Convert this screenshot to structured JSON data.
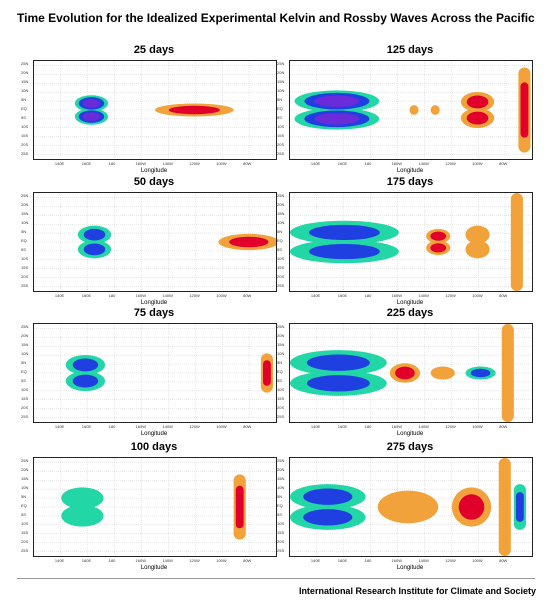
{
  "title": "Time Evolution for the Idealized Experimental Kelvin and Rossby Waves Across the Pacific",
  "footer": "International Research Institute for Climate and Society",
  "colors": {
    "blue": "#1f3fe0",
    "purple": "#6a2bd8",
    "teal": "#22d6a6",
    "orange": "#f2a23a",
    "lightorange": "#f7c07a",
    "red": "#e0002a",
    "grid": "#cfcfcf"
  },
  "chart_data": [
    {
      "type": "heatmap",
      "title": "25 days",
      "xlabel": "Longitude",
      "x_ticks": [
        "140E",
        "160E",
        "180",
        "160W",
        "140W",
        "120W",
        "100W",
        "80W"
      ],
      "y_ticks": [
        "25N",
        "20N",
        "15N",
        "10N",
        "5N",
        "EQ",
        "5S",
        "10S",
        "15S",
        "20S",
        "25S"
      ],
      "xlim": [
        120,
        280
      ],
      "ylim": [
        -30,
        30
      ],
      "features": [
        {
          "kind": "rossby",
          "lon": 158,
          "width": 22,
          "lat_half": 9,
          "layers": [
            "teal",
            "blue",
            "purple"
          ]
        },
        {
          "kind": "kelvin",
          "lon": 226,
          "width": 52,
          "lat_half": 4,
          "layers": [
            "orange",
            "red"
          ]
        }
      ]
    },
    {
      "type": "heatmap",
      "title": "125 days",
      "xlabel": "Longitude",
      "x_ticks": [
        "140E",
        "160E",
        "180",
        "160W",
        "140W",
        "120W",
        "100W",
        "80W"
      ],
      "y_ticks": [
        "25N",
        "20N",
        "15N",
        "10N",
        "5N",
        "EQ",
        "5S",
        "10S",
        "15S",
        "20S",
        "25S"
      ],
      "xlim": [
        120,
        280
      ],
      "ylim": [
        -30,
        30
      ],
      "features": [
        {
          "kind": "rossby",
          "lon": 151,
          "width": 56,
          "lat_half": 12,
          "layers": [
            "teal",
            "blue",
            "purple"
          ]
        },
        {
          "kind": "kelvin",
          "lon": 202,
          "width": 6,
          "lat_half": 3,
          "layers": [
            "orange"
          ]
        },
        {
          "kind": "kelvin",
          "lon": 216,
          "width": 6,
          "lat_half": 3,
          "layers": [
            "orange"
          ]
        },
        {
          "kind": "rossby",
          "lon": 244,
          "width": 22,
          "lat_half": 11,
          "layers": [
            "orange",
            "red"
          ]
        },
        {
          "kind": "boundary",
          "lon": 275,
          "lat_half": 26,
          "layers": [
            "orange",
            "red"
          ]
        }
      ]
    },
    {
      "type": "heatmap",
      "title": "50 days",
      "xlabel": "Longitude",
      "x_ticks": [
        "140E",
        "160E",
        "180",
        "160W",
        "140W",
        "120W",
        "100W",
        "80W"
      ],
      "y_ticks": [
        "25N",
        "20N",
        "15N",
        "10N",
        "5N",
        "EQ",
        "5S",
        "10S",
        "15S",
        "20S",
        "25S"
      ],
      "xlim": [
        120,
        280
      ],
      "ylim": [
        -30,
        30
      ],
      "features": [
        {
          "kind": "rossby",
          "lon": 160,
          "width": 22,
          "lat_half": 10,
          "layers": [
            "teal",
            "blue"
          ]
        },
        {
          "kind": "kelvin",
          "lon": 262,
          "width": 40,
          "lat_half": 5,
          "layers": [
            "orange",
            "red"
          ]
        }
      ]
    },
    {
      "type": "heatmap",
      "title": "175 days",
      "xlabel": "Longitude",
      "x_ticks": [
        "140E",
        "160E",
        "180",
        "160W",
        "140W",
        "120W",
        "100W",
        "80W"
      ],
      "y_ticks": [
        "25N",
        "20N",
        "15N",
        "10N",
        "5N",
        "EQ",
        "5S",
        "10S",
        "15S",
        "20S",
        "25S"
      ],
      "xlim": [
        120,
        280
      ],
      "ylim": [
        -30,
        30
      ],
      "features": [
        {
          "kind": "rossby",
          "lon": 156,
          "width": 72,
          "lat_half": 13,
          "layers": [
            "teal",
            "blue"
          ]
        },
        {
          "kind": "rossby",
          "lon": 218,
          "width": 16,
          "lat_half": 8,
          "layers": [
            "orange",
            "red"
          ]
        },
        {
          "kind": "rossby",
          "lon": 244,
          "width": 16,
          "lat_half": 10,
          "layers": [
            "orange"
          ]
        },
        {
          "kind": "boundary",
          "lon": 270,
          "lat_half": 30,
          "layers": [
            "orange"
          ]
        }
      ]
    },
    {
      "type": "heatmap",
      "title": "75 days",
      "xlabel": "Longitude",
      "x_ticks": [
        "140E",
        "160E",
        "180",
        "160W",
        "140W",
        "120W",
        "100W",
        "80W"
      ],
      "y_ticks": [
        "25N",
        "20N",
        "15N",
        "10N",
        "5N",
        "EQ",
        "5S",
        "10S",
        "15S",
        "20S",
        "25S"
      ],
      "xlim": [
        120,
        280
      ],
      "ylim": [
        -30,
        30
      ],
      "features": [
        {
          "kind": "rossby",
          "lon": 154,
          "width": 26,
          "lat_half": 11,
          "layers": [
            "teal",
            "blue"
          ]
        },
        {
          "kind": "boundary",
          "lon": 274,
          "lat_half": 12,
          "layers": [
            "orange",
            "red"
          ]
        }
      ]
    },
    {
      "type": "heatmap",
      "title": "225 days",
      "xlabel": "Longitude",
      "x_ticks": [
        "140E",
        "160E",
        "180",
        "160W",
        "140W",
        "120W",
        "100W",
        "80W"
      ],
      "y_ticks": [
        "25N",
        "20N",
        "15N",
        "10N",
        "5N",
        "EQ",
        "5S",
        "10S",
        "15S",
        "20S",
        "25S"
      ],
      "xlim": [
        120,
        280
      ],
      "ylim": [
        -30,
        30
      ],
      "features": [
        {
          "kind": "rossby",
          "lon": 152,
          "width": 64,
          "lat_half": 14,
          "layers": [
            "teal",
            "blue"
          ]
        },
        {
          "kind": "kelvin",
          "lon": 196,
          "width": 20,
          "lat_half": 6,
          "layers": [
            "orange",
            "red"
          ]
        },
        {
          "kind": "kelvin",
          "lon": 221,
          "width": 16,
          "lat_half": 4,
          "layers": [
            "orange"
          ]
        },
        {
          "kind": "kelvin",
          "lon": 246,
          "width": 20,
          "lat_half": 4,
          "layers": [
            "teal",
            "blue"
          ]
        },
        {
          "kind": "boundary",
          "lon": 264,
          "lat_half": 30,
          "layers": [
            "orange"
          ]
        }
      ]
    },
    {
      "type": "heatmap",
      "title": "100 days",
      "xlabel": "Longitude",
      "x_ticks": [
        "140E",
        "160E",
        "180",
        "160W",
        "140W",
        "120W",
        "100W",
        "80W"
      ],
      "y_ticks": [
        "25N",
        "20N",
        "15N",
        "10N",
        "5N",
        "EQ",
        "5S",
        "10S",
        "15S",
        "20S",
        "25S"
      ],
      "xlim": [
        120,
        280
      ],
      "ylim": [
        -30,
        30
      ],
      "features": [
        {
          "kind": "rossby",
          "lon": 152,
          "width": 28,
          "lat_half": 12,
          "layers": [
            "teal"
          ]
        },
        {
          "kind": "boundary",
          "lon": 256,
          "lat_half": 20,
          "layers": [
            "orange",
            "red"
          ]
        }
      ]
    },
    {
      "type": "heatmap",
      "title": "275 days",
      "xlabel": "Longitude",
      "x_ticks": [
        "140E",
        "160E",
        "180",
        "160W",
        "140W",
        "120W",
        "100W",
        "80W"
      ],
      "y_ticks": [
        "25N",
        "20N",
        "15N",
        "10N",
        "5N",
        "EQ",
        "5S",
        "10S",
        "15S",
        "20S",
        "25S"
      ],
      "xlim": [
        120,
        280
      ],
      "ylim": [
        -30,
        30
      ],
      "features": [
        {
          "kind": "rossby",
          "lon": 145,
          "width": 50,
          "lat_half": 14,
          "layers": [
            "teal",
            "blue"
          ]
        },
        {
          "kind": "kelvin",
          "lon": 198,
          "width": 40,
          "lat_half": 10,
          "layers": [
            "orange"
          ]
        },
        {
          "kind": "kelvin",
          "lon": 240,
          "width": 26,
          "lat_half": 12,
          "layers": [
            "orange",
            "red"
          ]
        },
        {
          "kind": "boundary",
          "lon": 272,
          "lat_half": 14,
          "layers": [
            "teal",
            "blue"
          ]
        },
        {
          "kind": "boundary",
          "lon": 262,
          "lat_half": 30,
          "layers": [
            "orange"
          ]
        }
      ]
    }
  ]
}
